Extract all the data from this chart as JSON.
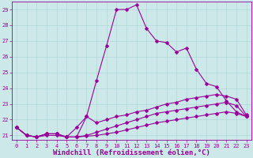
{
  "xlabel": "Windchill (Refroidissement éolien,°C)",
  "ylabel": "",
  "bg_color": "#cce8e8",
  "line_color": "#990099",
  "grid_color": "#aad4d4",
  "xlim": [
    -0.5,
    23.5
  ],
  "ylim": [
    20.7,
    29.5
  ],
  "xticks": [
    0,
    1,
    2,
    3,
    4,
    5,
    6,
    7,
    8,
    9,
    10,
    11,
    12,
    13,
    14,
    15,
    16,
    17,
    18,
    19,
    20,
    21,
    22,
    23
  ],
  "yticks": [
    21,
    22,
    23,
    24,
    25,
    26,
    27,
    28,
    29
  ],
  "line1_x": [
    0,
    1,
    2,
    3,
    4,
    5,
    6,
    7,
    8,
    9,
    10,
    11,
    12,
    13,
    14,
    15,
    16,
    17,
    18,
    19,
    20,
    21,
    22,
    23
  ],
  "line1_y": [
    21.5,
    21.0,
    20.9,
    21.1,
    21.1,
    20.9,
    20.9,
    22.2,
    24.5,
    26.7,
    29.0,
    29.0,
    29.3,
    27.8,
    27.0,
    26.9,
    26.3,
    26.55,
    25.2,
    24.3,
    24.1,
    23.2,
    22.5,
    22.2
  ],
  "line2_x": [
    0,
    1,
    2,
    3,
    4,
    5,
    6,
    7,
    8,
    9,
    10,
    11,
    12,
    13,
    14,
    15,
    16,
    17,
    18,
    19,
    20,
    21,
    22,
    23
  ],
  "line2_y": [
    21.5,
    21.0,
    20.9,
    21.1,
    21.1,
    20.9,
    21.5,
    22.2,
    21.8,
    22.0,
    22.2,
    22.3,
    22.5,
    22.6,
    22.8,
    23.0,
    23.1,
    23.3,
    23.4,
    23.5,
    23.6,
    23.5,
    23.3,
    22.3
  ],
  "line3_x": [
    0,
    1,
    2,
    3,
    4,
    5,
    6,
    7,
    8,
    9,
    10,
    11,
    12,
    13,
    14,
    15,
    16,
    17,
    18,
    19,
    20,
    21,
    22,
    23
  ],
  "line3_y": [
    21.5,
    21.0,
    20.9,
    21.1,
    21.1,
    20.9,
    20.9,
    21.0,
    21.2,
    21.4,
    21.6,
    21.8,
    22.0,
    22.2,
    22.4,
    22.5,
    22.6,
    22.7,
    22.8,
    22.9,
    23.0,
    23.1,
    22.9,
    22.2
  ],
  "line4_x": [
    0,
    1,
    2,
    3,
    4,
    5,
    6,
    7,
    8,
    9,
    10,
    11,
    12,
    13,
    14,
    15,
    16,
    17,
    18,
    19,
    20,
    21,
    22,
    23
  ],
  "line4_y": [
    21.5,
    21.0,
    20.9,
    21.0,
    21.0,
    20.9,
    20.9,
    20.95,
    21.0,
    21.1,
    21.2,
    21.35,
    21.5,
    21.65,
    21.8,
    21.9,
    22.0,
    22.1,
    22.2,
    22.3,
    22.4,
    22.5,
    22.4,
    22.2
  ],
  "markersize": 2.5,
  "linewidth": 0.8,
  "tick_fontsize": 5.0,
  "xlabel_fontsize": 6.5,
  "tick_color": "#990099",
  "axis_color": "#990099"
}
